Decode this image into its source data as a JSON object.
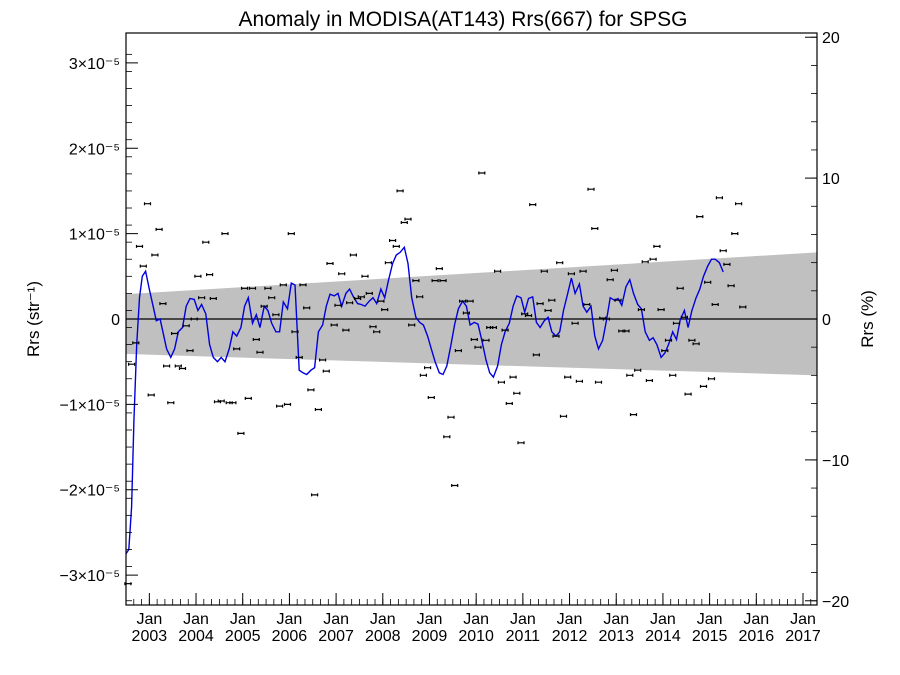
{
  "chart_data": {
    "type": "scatter",
    "title": "Anomaly in MODISA(AT143) Rrs(667) for SPSG",
    "ylabel_left": "Rrs (str⁻¹)",
    "ylabel_right": "Rrs (%)",
    "ylim_left": [
      -3.35e-05,
      3.35e-05
    ],
    "ylim_right": [
      -20.3,
      20.3
    ],
    "xlim": [
      2002.5,
      2017.3
    ],
    "grid": false,
    "left_ticks": [
      {
        "value": 3e-05,
        "label": "3×10⁻⁵"
      },
      {
        "value": 2e-05,
        "label": "2×10⁻⁵"
      },
      {
        "value": 1e-05,
        "label": "1×10⁻⁵"
      },
      {
        "value": 0,
        "label": "0"
      },
      {
        "value": -1e-05,
        "label": "−1×10⁻⁵"
      },
      {
        "value": -2e-05,
        "label": "−2×10⁻⁵"
      },
      {
        "value": -3e-05,
        "label": "−3×10⁻⁵"
      }
    ],
    "right_ticks": [
      {
        "value": 20,
        "label": "20"
      },
      {
        "value": 10,
        "label": "10"
      },
      {
        "value": 0,
        "label": "0"
      },
      {
        "value": -10,
        "label": "−10"
      },
      {
        "value": -20,
        "label": "−20"
      }
    ],
    "x_ticks": [
      {
        "value": 2003,
        "month": "Jan",
        "year": "2003"
      },
      {
        "value": 2004,
        "month": "Jan",
        "year": "2004"
      },
      {
        "value": 2005,
        "month": "Jan",
        "year": "2005"
      },
      {
        "value": 2006,
        "month": "Jan",
        "year": "2006"
      },
      {
        "value": 2007,
        "month": "Jan",
        "year": "2007"
      },
      {
        "value": 2008,
        "month": "Jan",
        "year": "2008"
      },
      {
        "value": 2009,
        "month": "Jan",
        "year": "2009"
      },
      {
        "value": 2010,
        "month": "Jan",
        "year": "2010"
      },
      {
        "value": 2011,
        "month": "Jan",
        "year": "2011"
      },
      {
        "value": 2012,
        "month": "Jan",
        "year": "2012"
      },
      {
        "value": 2013,
        "month": "Jan",
        "year": "2013"
      },
      {
        "value": 2014,
        "month": "Jan",
        "year": "2014"
      },
      {
        "value": 2015,
        "month": "Jan",
        "year": "2015"
      },
      {
        "value": 2016,
        "month": "Jan",
        "year": "2016"
      },
      {
        "value": 2017,
        "month": "Jan",
        "year": "2017"
      }
    ],
    "band": {
      "color": "#c0c0c0",
      "x": [
        2002.5,
        2017.3
      ],
      "upper": [
        2.9e-06,
        7.8e-06
      ],
      "lower": [
        -4.1e-06,
        -6.6e-06
      ]
    },
    "zero_line": true,
    "scatter_color": "#000000",
    "line_color": "#0000dd",
    "points": [
      [
        2002.54,
        -3.1e-05
      ],
      [
        2002.62,
        -5.3e-06
      ],
      [
        2002.71,
        -2.8e-06
      ],
      [
        2002.79,
        8.5e-06
      ],
      [
        2002.87,
        6.2e-06
      ],
      [
        2002.96,
        1.35e-05
      ],
      [
        2003.04,
        -8.9e-06
      ],
      [
        2003.12,
        7.5e-06
      ],
      [
        2003.21,
        1.05e-05
      ],
      [
        2003.29,
        1.8e-06
      ],
      [
        2003.37,
        -5.5e-06
      ],
      [
        2003.46,
        -9.8e-06
      ],
      [
        2003.54,
        -1.7e-06
      ],
      [
        2003.62,
        -5.5e-06
      ],
      [
        2003.71,
        -5.8e-06
      ],
      [
        2003.79,
        -8e-07
      ],
      [
        2003.87,
        -3.7e-06
      ],
      [
        2003.96,
        0
      ],
      [
        2004.04,
        5e-06
      ],
      [
        2004.12,
        2.5e-06
      ],
      [
        2004.21,
        9e-06
      ],
      [
        2004.29,
        5.2e-06
      ],
      [
        2004.37,
        2.4e-06
      ],
      [
        2004.46,
        -9.7e-06
      ],
      [
        2004.54,
        -9.6e-06
      ],
      [
        2004.62,
        1e-05
      ],
      [
        2004.71,
        -9.8e-06
      ],
      [
        2004.79,
        -9.8e-06
      ],
      [
        2004.87,
        -3.5e-06
      ],
      [
        2004.96,
        -1.34e-05
      ],
      [
        2005.04,
        3.6e-06
      ],
      [
        2005.12,
        -9.3e-06
      ],
      [
        2005.21,
        3.6e-06
      ],
      [
        2005.29,
        -2.4e-06
      ],
      [
        2005.37,
        -3.9e-06
      ],
      [
        2005.46,
        1.5e-06
      ],
      [
        2005.54,
        3.6e-06
      ],
      [
        2005.62,
        2.5e-06
      ],
      [
        2005.71,
        5e-07
      ],
      [
        2005.79,
        -1.02e-05
      ],
      [
        2005.87,
        4e-06
      ],
      [
        2005.96,
        -1e-05
      ],
      [
        2006.04,
        1e-05
      ],
      [
        2006.12,
        -1.5e-06
      ],
      [
        2006.21,
        -4.5e-06
      ],
      [
        2006.29,
        4e-06
      ],
      [
        2006.37,
        1.3e-06
      ],
      [
        2006.46,
        -8.3e-06
      ],
      [
        2006.54,
        -2.06e-05
      ],
      [
        2006.62,
        -1.06e-05
      ],
      [
        2006.71,
        -4.8e-06
      ],
      [
        2006.79,
        -6.1e-06
      ],
      [
        2006.87,
        6.5e-06
      ],
      [
        2006.96,
        -7e-07
      ],
      [
        2007.04,
        1.6e-06
      ],
      [
        2007.12,
        5.3e-06
      ],
      [
        2007.21,
        -1.3e-06
      ],
      [
        2007.29,
        1.9e-06
      ],
      [
        2007.37,
        7.5e-06
      ],
      [
        2007.46,
        2.4e-06
      ],
      [
        2007.54,
        2.6e-06
      ],
      [
        2007.62,
        5e-06
      ],
      [
        2007.71,
        3e-06
      ],
      [
        2007.79,
        -9e-07
      ],
      [
        2007.87,
        -1.5e-06
      ],
      [
        2007.96,
        2.1e-06
      ],
      [
        2008.04,
        1.1e-06
      ],
      [
        2008.12,
        6.6e-06
      ],
      [
        2008.21,
        9.2e-06
      ],
      [
        2008.29,
        8.5e-06
      ],
      [
        2008.37,
        1.5e-05
      ],
      [
        2008.46,
        1.13e-05
      ],
      [
        2008.54,
        1.17e-05
      ],
      [
        2008.62,
        -7e-07
      ],
      [
        2008.71,
        4.5e-06
      ],
      [
        2008.79,
        2.6e-06
      ],
      [
        2008.87,
        -6.6e-06
      ],
      [
        2008.96,
        -5.7e-06
      ],
      [
        2009.04,
        -9.2e-06
      ],
      [
        2009.12,
        4.5e-06
      ],
      [
        2009.21,
        5.9e-06
      ],
      [
        2009.29,
        4.5e-06
      ],
      [
        2009.37,
        -1.38e-05
      ],
      [
        2009.46,
        -1.15e-05
      ],
      [
        2009.54,
        -1.95e-05
      ],
      [
        2009.62,
        -3.7e-06
      ],
      [
        2009.71,
        2.1e-06
      ],
      [
        2009.79,
        7e-07
      ],
      [
        2009.87,
        2.1e-06
      ],
      [
        2009.96,
        -2.4e-06
      ],
      [
        2010.04,
        -3.3e-06
      ],
      [
        2010.12,
        1.71e-05
      ],
      [
        2010.21,
        -2.5e-06
      ],
      [
        2010.29,
        -1e-06
      ],
      [
        2010.37,
        -1e-06
      ],
      [
        2010.46,
        5.6e-06
      ],
      [
        2010.54,
        -7.4e-06
      ],
      [
        2010.62,
        -1.3e-06
      ],
      [
        2010.71,
        -9.9e-06
      ],
      [
        2010.79,
        -6.8e-06
      ],
      [
        2010.87,
        -8.7e-06
      ],
      [
        2010.96,
        -1.45e-05
      ],
      [
        2011.04,
        6e-07
      ],
      [
        2011.12,
        4e-07
      ],
      [
        2011.21,
        1.34e-05
      ],
      [
        2011.29,
        -4.2e-06
      ],
      [
        2011.37,
        1.8e-06
      ],
      [
        2011.46,
        5.6e-06
      ],
      [
        2011.54,
        1e-06
      ],
      [
        2011.62,
        2.2e-06
      ],
      [
        2011.71,
        -2e-06
      ],
      [
        2011.79,
        6.6e-06
      ],
      [
        2011.87,
        -1.14e-05
      ],
      [
        2011.96,
        -6.8e-06
      ],
      [
        2012.04,
        5.3e-06
      ],
      [
        2012.12,
        -5e-07
      ],
      [
        2012.21,
        -7.3e-06
      ],
      [
        2012.29,
        5.6e-06
      ],
      [
        2012.37,
        1.7e-06
      ],
      [
        2012.46,
        1.52e-05
      ],
      [
        2012.54,
        1.06e-05
      ],
      [
        2012.62,
        -7.4e-06
      ],
      [
        2012.71,
        1e-07
      ],
      [
        2012.79,
        0
      ],
      [
        2012.87,
        4.6e-06
      ],
      [
        2012.96,
        5.7e-06
      ],
      [
        2013.04,
        2.2e-06
      ],
      [
        2013.12,
        -1.4e-06
      ],
      [
        2013.21,
        -1.4e-06
      ],
      [
        2013.29,
        -6.6e-06
      ],
      [
        2013.37,
        -1.12e-05
      ],
      [
        2013.46,
        -6e-06
      ],
      [
        2013.54,
        1.1e-06
      ],
      [
        2013.62,
        6.7e-06
      ],
      [
        2013.71,
        -7.2e-06
      ],
      [
        2013.79,
        7e-06
      ],
      [
        2013.87,
        8.5e-06
      ],
      [
        2013.96,
        1.1e-06
      ],
      [
        2014.04,
        -3.7e-06
      ],
      [
        2014.12,
        -2.5e-06
      ],
      [
        2014.21,
        -6.6e-06
      ],
      [
        2014.29,
        -5e-07
      ],
      [
        2014.37,
        3.6e-06
      ],
      [
        2014.46,
        2e-07
      ],
      [
        2014.54,
        -8.8e-06
      ],
      [
        2014.62,
        -2.5e-06
      ],
      [
        2014.71,
        -2.9e-06
      ],
      [
        2014.79,
        1.2e-05
      ],
      [
        2014.87,
        -7.9e-06
      ],
      [
        2014.96,
        4.3e-06
      ],
      [
        2015.04,
        -7e-06
      ],
      [
        2015.12,
        1.7e-06
      ],
      [
        2015.21,
        1.42e-05
      ],
      [
        2015.29,
        8e-06
      ],
      [
        2015.37,
        6.4e-06
      ],
      [
        2015.46,
        3.9e-06
      ],
      [
        2015.54,
        1e-05
      ],
      [
        2015.62,
        1.35e-05
      ],
      [
        2015.71,
        1.4e-06
      ]
    ],
    "trend": [
      [
        2002.5,
        -2.75e-05
      ],
      [
        2002.56,
        -2.7e-05
      ],
      [
        2002.62,
        -2.2e-05
      ],
      [
        2002.67,
        -1.2e-05
      ],
      [
        2002.73,
        -3e-06
      ],
      [
        2002.79,
        2.5e-06
      ],
      [
        2002.85,
        5e-06
      ],
      [
        2002.92,
        5.6e-06
      ],
      [
        2003.0,
        3.5e-06
      ],
      [
        2003.08,
        1.5e-06
      ],
      [
        2003.15,
        -2e-07
      ],
      [
        2003.23,
        0
      ],
      [
        2003.29,
        -1.5e-06
      ],
      [
        2003.37,
        -3.5e-06
      ],
      [
        2003.46,
        -4.5e-06
      ],
      [
        2003.54,
        -3.5e-06
      ],
      [
        2003.62,
        -1.5e-06
      ],
      [
        2003.71,
        -1e-06
      ],
      [
        2003.79,
        1.5e-06
      ],
      [
        2003.87,
        2.4e-06
      ],
      [
        2003.96,
        2.3e-06
      ],
      [
        2004.04,
        1e-06
      ],
      [
        2004.12,
        1.7e-06
      ],
      [
        2004.21,
        6e-07
      ],
      [
        2004.29,
        -3e-06
      ],
      [
        2004.37,
        -4.5e-06
      ],
      [
        2004.46,
        -5e-06
      ],
      [
        2004.54,
        -4.5e-06
      ],
      [
        2004.62,
        -5e-06
      ],
      [
        2004.71,
        -3.5e-06
      ],
      [
        2004.79,
        -1.5e-06
      ],
      [
        2004.87,
        -2e-06
      ],
      [
        2004.96,
        -1e-06
      ],
      [
        2005.04,
        1.5e-06
      ],
      [
        2005.12,
        2.5e-06
      ],
      [
        2005.21,
        -5e-07
      ],
      [
        2005.29,
        5e-07
      ],
      [
        2005.37,
        -1e-06
      ],
      [
        2005.46,
        1.5e-06
      ],
      [
        2005.54,
        1e-06
      ],
      [
        2005.62,
        -5e-07
      ],
      [
        2005.71,
        -1.5e-06
      ],
      [
        2005.79,
        -1.5e-06
      ],
      [
        2005.87,
        2e-06
      ],
      [
        2005.96,
        1.2e-06
      ],
      [
        2006.04,
        4.2e-06
      ],
      [
        2006.12,
        4e-06
      ],
      [
        2006.21,
        -6e-06
      ],
      [
        2006.29,
        -6.3e-06
      ],
      [
        2006.37,
        -6.5e-06
      ],
      [
        2006.46,
        -6e-06
      ],
      [
        2006.54,
        -5.7e-06
      ],
      [
        2006.62,
        -1.5e-06
      ],
      [
        2006.71,
        -7e-07
      ],
      [
        2006.79,
        1.5e-06
      ],
      [
        2006.87,
        2.9e-06
      ],
      [
        2006.96,
        2.7e-06
      ],
      [
        2007.04,
        3e-06
      ],
      [
        2007.12,
        1.5e-06
      ],
      [
        2007.21,
        3e-06
      ],
      [
        2007.29,
        3.5e-06
      ],
      [
        2007.37,
        2.6e-06
      ],
      [
        2007.46,
        1.8e-06
      ],
      [
        2007.54,
        1.7e-06
      ],
      [
        2007.62,
        1.5e-06
      ],
      [
        2007.71,
        2.1e-06
      ],
      [
        2007.79,
        2.5e-06
      ],
      [
        2007.87,
        1.8e-06
      ],
      [
        2007.96,
        3.5e-06
      ],
      [
        2008.04,
        2.5e-06
      ],
      [
        2008.12,
        4.5e-06
      ],
      [
        2008.21,
        6.5e-06
      ],
      [
        2008.29,
        7.5e-06
      ],
      [
        2008.37,
        7.8e-06
      ],
      [
        2008.46,
        8.4e-06
      ],
      [
        2008.54,
        6.5e-06
      ],
      [
        2008.62,
        2.5e-06
      ],
      [
        2008.71,
        2e-07
      ],
      [
        2008.79,
        -4e-07
      ],
      [
        2008.87,
        -7e-07
      ],
      [
        2008.96,
        -2e-06
      ],
      [
        2009.04,
        -3.5e-06
      ],
      [
        2009.12,
        -5e-06
      ],
      [
        2009.21,
        -6.3e-06
      ],
      [
        2009.29,
        -6.5e-06
      ],
      [
        2009.37,
        -5.5e-06
      ],
      [
        2009.46,
        -3e-06
      ],
      [
        2009.54,
        -6e-07
      ],
      [
        2009.62,
        1.2e-06
      ],
      [
        2009.71,
        2.1e-06
      ],
      [
        2009.79,
        1.5e-06
      ],
      [
        2009.87,
        -7e-07
      ],
      [
        2009.96,
        -4e-07
      ],
      [
        2010.04,
        -6e-07
      ],
      [
        2010.12,
        -2.5e-06
      ],
      [
        2010.21,
        -4.8e-06
      ],
      [
        2010.29,
        -6.3e-06
      ],
      [
        2010.37,
        -6.8e-06
      ],
      [
        2010.46,
        -5.5e-06
      ],
      [
        2010.54,
        -3e-06
      ],
      [
        2010.62,
        -1.5e-06
      ],
      [
        2010.71,
        -5e-07
      ],
      [
        2010.79,
        1.5e-06
      ],
      [
        2010.87,
        2.7e-06
      ],
      [
        2010.96,
        2.5e-06
      ],
      [
        2011.04,
        8e-07
      ],
      [
        2011.12,
        2.4e-06
      ],
      [
        2011.21,
        2.6e-06
      ],
      [
        2011.29,
        -4e-07
      ],
      [
        2011.37,
        -1e-06
      ],
      [
        2011.46,
        -2e-07
      ],
      [
        2011.54,
        2e-07
      ],
      [
        2011.62,
        -1.5e-06
      ],
      [
        2011.71,
        -2e-06
      ],
      [
        2011.79,
        -1.5e-06
      ],
      [
        2011.87,
        1e-06
      ],
      [
        2011.96,
        3e-06
      ],
      [
        2012.04,
        4.8e-06
      ],
      [
        2012.12,
        3e-06
      ],
      [
        2012.21,
        4.1e-06
      ],
      [
        2012.29,
        1.5e-06
      ],
      [
        2012.37,
        8e-07
      ],
      [
        2012.46,
        1.5e-06
      ],
      [
        2012.54,
        -2e-06
      ],
      [
        2012.62,
        -3.5e-06
      ],
      [
        2012.71,
        -2.5e-06
      ],
      [
        2012.79,
        -2e-07
      ],
      [
        2012.87,
        2.5e-06
      ],
      [
        2012.96,
        2.2e-06
      ],
      [
        2013.04,
        2.4e-06
      ],
      [
        2013.12,
        1.6e-06
      ],
      [
        2013.21,
        3.8e-06
      ],
      [
        2013.29,
        4.6e-06
      ],
      [
        2013.37,
        3e-06
      ],
      [
        2013.46,
        1.7e-06
      ],
      [
        2013.54,
        1.2e-06
      ],
      [
        2013.62,
        -1.5e-06
      ],
      [
        2013.71,
        -2.5e-06
      ],
      [
        2013.79,
        -2.2e-06
      ],
      [
        2013.87,
        -3e-06
      ],
      [
        2013.96,
        -4.5e-06
      ],
      [
        2014.04,
        -4e-06
      ],
      [
        2014.12,
        -3e-06
      ],
      [
        2014.21,
        -1.5e-06
      ],
      [
        2014.29,
        -2.4e-06
      ],
      [
        2014.37,
        -1e-07
      ],
      [
        2014.46,
        1e-06
      ],
      [
        2014.54,
        -1e-06
      ],
      [
        2014.62,
        1e-06
      ],
      [
        2014.71,
        2.5e-06
      ],
      [
        2014.79,
        3.5e-06
      ],
      [
        2014.87,
        5e-06
      ],
      [
        2014.96,
        6.2e-06
      ],
      [
        2015.04,
        7e-06
      ],
      [
        2015.12,
        7e-06
      ],
      [
        2015.21,
        6.6e-06
      ],
      [
        2015.29,
        5.5e-06
      ]
    ]
  }
}
